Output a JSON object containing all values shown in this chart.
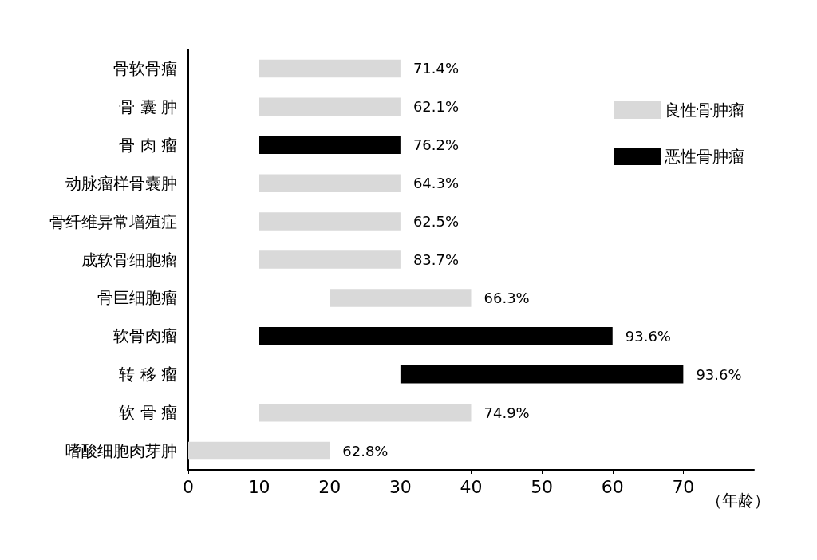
{
  "chart_data": {
    "type": "bar",
    "orientation": "horizontal",
    "xlabel": "（年龄）",
    "categories": [
      "骨软骨瘤",
      "骨 囊 肿",
      "骨 肉 瘤",
      "动脉瘤样骨囊肿",
      "骨纤维异常增殖症",
      "成软骨细胞瘤",
      "骨巨细胞瘤",
      "软骨肉瘤",
      "转 移 瘤",
      "软 骨 瘤",
      "嗜酸细胞肉芽肿"
    ],
    "series": [
      {
        "name": "良性骨肿瘤",
        "color": "#d9d9d9",
        "base": [
          10,
          10,
          null,
          10,
          10,
          10,
          20,
          null,
          null,
          10,
          0
        ],
        "values": [
          20,
          20,
          null,
          20,
          20,
          20,
          20,
          null,
          null,
          30,
          20
        ]
      },
      {
        "name": "恶性骨肿瘤",
        "color": "#000000",
        "base": [
          null,
          null,
          10,
          null,
          null,
          null,
          null,
          10,
          30,
          null,
          null
        ],
        "values": [
          null,
          null,
          20,
          null,
          null,
          null,
          null,
          50,
          40,
          null,
          null
        ]
      }
    ],
    "annotations": [
      {
        "text": "71.4%",
        "x": 30,
        "y": "骨软骨瘤"
      },
      {
        "text": "62.1%",
        "x": 30,
        "y": "骨 囊 肿"
      },
      {
        "text": "76.2%",
        "x": 30,
        "y": "骨 肉 瘤"
      },
      {
        "text": "64.3%",
        "x": 30,
        "y": "动脉瘤样骨囊肿"
      },
      {
        "text": "62.5%",
        "x": 30,
        "y": "骨纤维异常增殖症"
      },
      {
        "text": "83.7%",
        "x": 30,
        "y": "成软骨细胞瘤"
      },
      {
        "text": "66.3%",
        "x": 40,
        "y": "骨巨细胞瘤"
      },
      {
        "text": "93.6%",
        "x": 60,
        "y": "软骨肉瘤"
      },
      {
        "text": "93.6%",
        "x": 70,
        "y": "转 移 瘤"
      },
      {
        "text": "74.9%",
        "x": 40,
        "y": "软 骨 瘤"
      },
      {
        "text": "62.8%",
        "x": 20,
        "y": "嗜酸细胞肉芽肿"
      }
    ],
    "xlim": [
      0,
      80
    ],
    "xticks": [
      0,
      10,
      20,
      30,
      40,
      50,
      60,
      70
    ],
    "grid": false,
    "legend": "top right"
  }
}
